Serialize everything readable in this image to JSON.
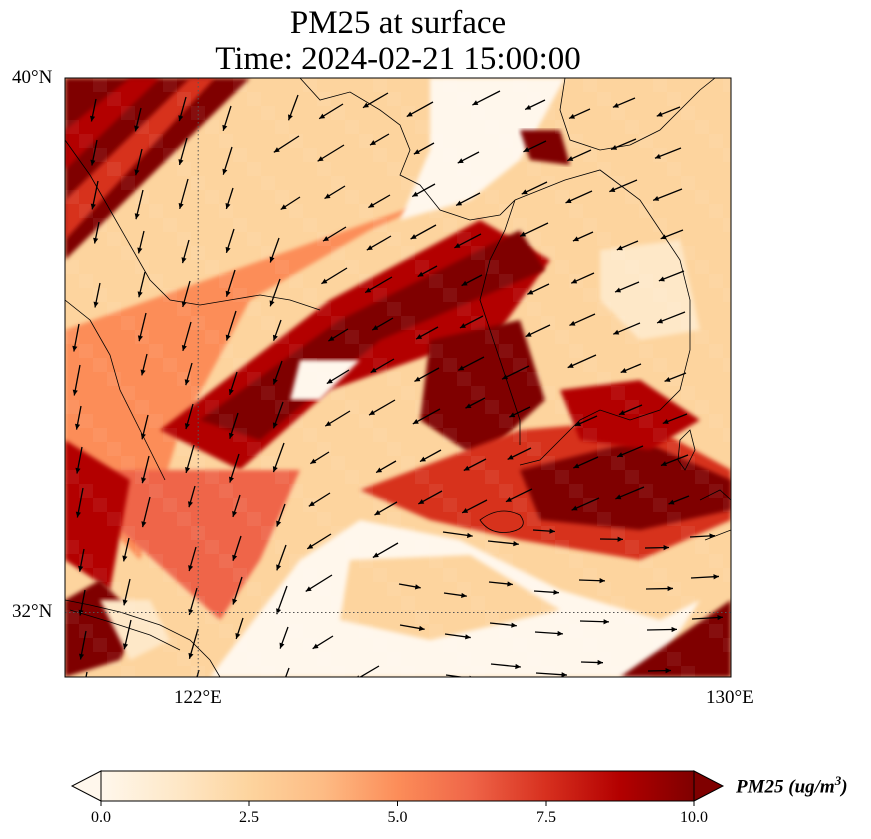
{
  "header": {
    "title_line1": "PM25 at surface",
    "title_line2": "Time: 2024-02-21 15:00:00"
  },
  "map": {
    "lat_range": [
      31.2,
      40.0
    ],
    "lon_range": [
      120.0,
      130.0
    ],
    "lat_labels": [
      {
        "text": "40°N",
        "value": 40
      },
      {
        "text": "32°N",
        "value": 32
      }
    ],
    "lon_labels": [
      {
        "text": "122°E",
        "value": 122
      },
      {
        "text": "130°E",
        "value": 130
      }
    ],
    "gridlines": "dotted",
    "colormap": "OrRd",
    "colors": [
      "#fff7ec",
      "#fee8c8",
      "#fdd49e",
      "#fdbb84",
      "#fc8d59",
      "#ef6548",
      "#d7301f",
      "#b30000",
      "#7f0000"
    ]
  },
  "colorbar": {
    "min": 0.0,
    "max": 10.0,
    "extend": "both",
    "ticks": [
      "0.0",
      "2.5",
      "5.0",
      "7.5",
      "10.0"
    ],
    "label_main": "PM25 (ug/m",
    "label_sup": "3",
    "label_end": ")"
  }
}
